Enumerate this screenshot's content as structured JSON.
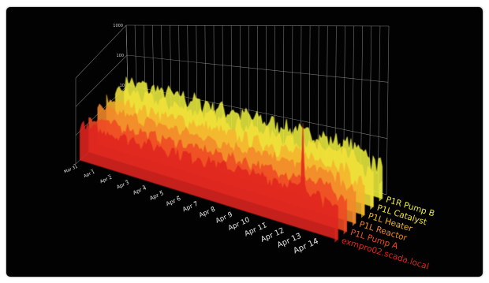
{
  "chart_data": {
    "type": "area",
    "projection": "3d",
    "title": "",
    "xlabel": "",
    "ylabel": "",
    "yscale": "log",
    "y_ticks": [
      "1000",
      "100",
      "10"
    ],
    "ylim": [
      1,
      1000
    ],
    "grid": true,
    "x_ticks": [
      "Mar 31",
      "Apr 1",
      "Apr 2",
      "Apr 3",
      "Apr 4",
      "Apr 5",
      "Apr 6",
      "Apr 7",
      "Apr 8",
      "Apr 9",
      "Apr 10",
      "Apr 11",
      "Apr 12",
      "Apr 13",
      "Apr 14"
    ],
    "x_range": [
      "Mar 31",
      "Apr 15"
    ],
    "series": [
      {
        "name": "exmpro02.scada.local",
        "color": "#e0241c",
        "baseline": 12,
        "noise": 4,
        "spike": {
          "at": "Apr 13",
          "value": 600
        }
      },
      {
        "name": "P1L Pump A",
        "color": "#ef4a22",
        "baseline": 10,
        "noise": 3
      },
      {
        "name": "P1L Reactor",
        "color": "#f3892a",
        "baseline": 10,
        "noise": 3
      },
      {
        "name": "P1L Heater",
        "color": "#f5b52e",
        "baseline": 9,
        "noise": 3
      },
      {
        "name": "P1L Catalyst",
        "color": "#f1e13a",
        "baseline": 9,
        "noise": 3
      },
      {
        "name": "P1R Pump B",
        "color": "#e9ec3e",
        "baseline": 8,
        "noise": 3
      }
    ]
  }
}
